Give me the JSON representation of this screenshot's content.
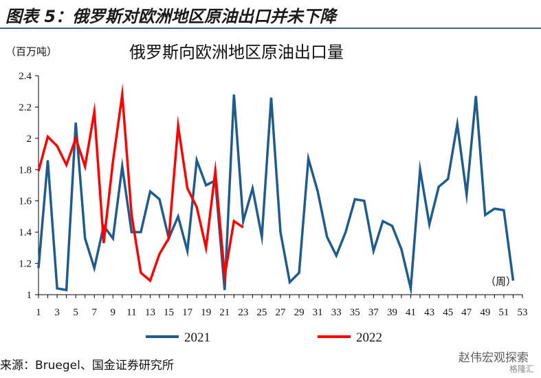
{
  "figure_title": "图表 5：俄罗斯对欧洲地区原油出口并未下降",
  "unit_label": "（百万吨）",
  "source": "来源：Bruegel、国金证券研究所",
  "watermark": "赵伟宏观探索",
  "watermark_logo": "格隆汇",
  "chart_data": {
    "type": "line",
    "title": "俄罗斯向欧洲地区原油出口量",
    "xlabel": "（周）",
    "ylabel": "（百万吨）",
    "ylim": [
      1,
      2.4
    ],
    "yticks": [
      1,
      1.2,
      1.4,
      1.6,
      1.8,
      2,
      2.2,
      2.4
    ],
    "ytick_labels": [
      "1",
      "1.2",
      "1.4",
      "1.6",
      "1.8",
      "2",
      "2.2",
      "2.4"
    ],
    "xlim": [
      1,
      53
    ],
    "xticks": [
      1,
      3,
      5,
      7,
      9,
      11,
      13,
      15,
      17,
      19,
      21,
      23,
      25,
      27,
      29,
      31,
      33,
      35,
      37,
      39,
      41,
      43,
      45,
      47,
      49,
      51,
      53
    ],
    "legend_position": "bottom",
    "colors": {
      "2021": "#1f5c8b",
      "2022": "#ff0000"
    },
    "series": [
      {
        "name": "2021",
        "x": [
          1,
          2,
          3,
          4,
          5,
          6,
          7,
          8,
          9,
          10,
          11,
          12,
          13,
          14,
          15,
          16,
          17,
          18,
          19,
          20,
          21,
          22,
          23,
          24,
          25,
          26,
          27,
          28,
          29,
          30,
          31,
          32,
          33,
          34,
          35,
          36,
          37,
          38,
          39,
          40,
          41,
          42,
          43,
          44,
          45,
          46,
          47,
          48,
          49,
          50,
          51,
          52
        ],
        "values": [
          1.17,
          1.86,
          1.04,
          1.03,
          2.1,
          1.36,
          1.17,
          1.44,
          1.36,
          1.82,
          1.4,
          1.4,
          1.66,
          1.61,
          1.36,
          1.5,
          1.28,
          1.86,
          1.7,
          1.73,
          1.03,
          2.28,
          1.47,
          1.68,
          1.37,
          2.26,
          1.4,
          1.08,
          1.14,
          1.87,
          1.66,
          1.37,
          1.25,
          1.4,
          1.61,
          1.6,
          1.28,
          1.47,
          1.44,
          1.29,
          1.04,
          1.8,
          1.45,
          1.69,
          1.74,
          2.09,
          1.64,
          2.27,
          1.51,
          1.55,
          1.54,
          1.09
        ]
      },
      {
        "name": "2022",
        "x": [
          1,
          2,
          3,
          4,
          5,
          6,
          7,
          8,
          9,
          10,
          11,
          12,
          13,
          14,
          15,
          16,
          17,
          18,
          19,
          20,
          21,
          22,
          23
        ],
        "values": [
          1.79,
          2.01,
          1.95,
          1.83,
          2.0,
          1.82,
          2.17,
          1.33,
          1.85,
          2.28,
          1.51,
          1.14,
          1.09,
          1.26,
          1.36,
          2.08,
          1.68,
          1.56,
          1.3,
          1.79,
          1.12,
          1.47,
          1.43
        ]
      }
    ]
  }
}
